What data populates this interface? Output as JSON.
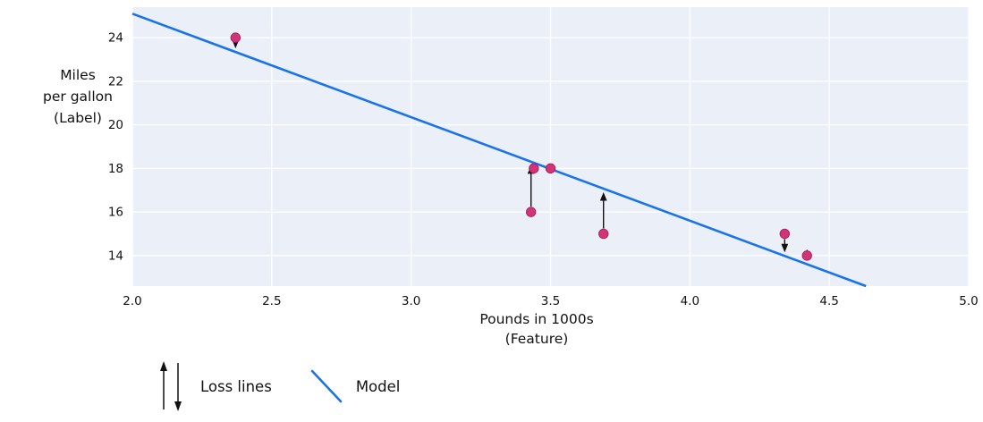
{
  "chart_data": {
    "type": "scatter",
    "title": "",
    "xlabel": "Pounds in 1000s\n(Feature)",
    "ylabel": "Miles\nper gallon\n(Label)",
    "xlim": [
      2.0,
      5.0
    ],
    "ylim": [
      12.6,
      25.4
    ],
    "xticks": [
      2.0,
      2.5,
      3.0,
      3.5,
      4.0,
      4.5,
      5.0
    ],
    "xtick_labels": [
      "2.0",
      "2.5",
      "3.0",
      "3.5",
      "4.0",
      "4.5",
      "5.0"
    ],
    "yticks": [
      14,
      16,
      18,
      20,
      22,
      24
    ],
    "grid": true,
    "points": [
      {
        "x": 3.5,
        "y": 18
      },
      {
        "x": 3.69,
        "y": 15
      },
      {
        "x": 3.44,
        "y": 18
      },
      {
        "x": 3.43,
        "y": 16
      },
      {
        "x": 4.34,
        "y": 15
      },
      {
        "x": 4.42,
        "y": 14
      },
      {
        "x": 2.37,
        "y": 24
      }
    ],
    "model": {
      "slope": -4.75,
      "intercept": 34.6
    },
    "loss_arrow_threshold": 0.3,
    "colors": {
      "plot_bg": "#eaeff8",
      "grid": "#ffffff",
      "model": "#1a73e8",
      "point": "#d23577",
      "point_edge": "#ab2060",
      "arrow": "#111111",
      "text": "#111111"
    }
  },
  "legend": {
    "items": [
      {
        "label": "Loss lines",
        "icon": "loss-arrows"
      },
      {
        "label": "Model",
        "icon": "model-line"
      }
    ]
  }
}
